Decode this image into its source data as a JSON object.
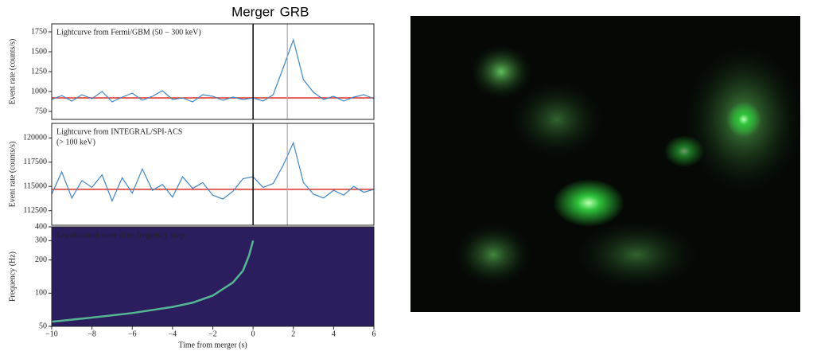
{
  "chart_data": [
    {
      "type": "line",
      "title": "Lightcurve from Fermi/GBM (50 − 300 keV)",
      "ylabel": "Event rate (counts/s)",
      "x": [
        -10,
        -9.5,
        -9,
        -8.5,
        -8,
        -7.5,
        -7,
        -6.5,
        -6,
        -5.5,
        -5,
        -4.5,
        -4,
        -3.5,
        -3,
        -2.5,
        -2,
        -1.5,
        -1,
        -0.5,
        0,
        0.5,
        1,
        1.5,
        2,
        2.5,
        3,
        3.5,
        4,
        4.5,
        5,
        5.5,
        6
      ],
      "series": [
        {
          "color": "#3f86c4",
          "values": [
            900,
            950,
            880,
            960,
            910,
            1000,
            870,
            930,
            980,
            890,
            940,
            1010,
            900,
            920,
            870,
            960,
            940,
            890,
            930,
            900,
            920,
            880,
            960,
            1300,
            1650,
            1150,
            990,
            900,
            940,
            880,
            930,
            960,
            910
          ]
        }
      ],
      "baseline": 920,
      "baseline_color": "#e0302a",
      "markers": [
        {
          "label": "Merger",
          "x": 0,
          "color": "#000000"
        },
        {
          "label": "GRB",
          "x": 1.7,
          "color": "#aaaaaa"
        }
      ],
      "xlim": [
        -10,
        6
      ],
      "ylim": [
        650,
        1850
      ],
      "yticks": [
        750,
        1000,
        1250,
        1500,
        1750
      ]
    },
    {
      "type": "line",
      "title": "Lightcurve from INTEGRAL/SPI-ACS",
      "subtitle": "(> 100 keV)",
      "ylabel": "Event rate (counts/s)",
      "x": [
        -10,
        -9.5,
        -9,
        -8.5,
        -8,
        -7.5,
        -7,
        -6.5,
        -6,
        -5.5,
        -5,
        -4.5,
        -4,
        -3.5,
        -3,
        -2.5,
        -2,
        -1.5,
        -1,
        -0.5,
        0,
        0.5,
        1,
        1.5,
        2,
        2.5,
        3,
        3.5,
        4,
        4.5,
        5,
        5.5,
        6
      ],
      "series": [
        {
          "color": "#3f86c4",
          "values": [
            114200,
            116500,
            113800,
            115600,
            114900,
            116200,
            113500,
            115900,
            114300,
            116800,
            114600,
            115200,
            113900,
            116000,
            114800,
            115400,
            114100,
            113700,
            114500,
            115800,
            116000,
            114900,
            115300,
            117200,
            119500,
            115400,
            114200,
            113800,
            114600,
            114100,
            115000,
            114400,
            114700
          ]
        }
      ],
      "baseline": 114700,
      "baseline_color": "#e0302a",
      "xlim": [
        -10,
        6
      ],
      "ylim": [
        111000,
        121500
      ],
      "yticks": [
        112500,
        115000,
        117500,
        120000
      ]
    },
    {
      "type": "line",
      "title": "Gravitational-wave time-frequency map",
      "ylabel": "Frequency (Hz)",
      "xlabel": "Time from merger (s)",
      "background": "#2b1d5e",
      "ylog": true,
      "x": [
        -10,
        -8,
        -6,
        -4,
        -3,
        -2,
        -1,
        -0.5,
        -0.2,
        0
      ],
      "series": [
        {
          "color": "#5fe0a0",
          "values": [
            55,
            60,
            66,
            75,
            82,
            95,
            125,
            160,
            220,
            300
          ]
        }
      ],
      "xlim": [
        -10,
        6
      ],
      "ylim": [
        50,
        400
      ],
      "xticks": [
        {
          "value": -10,
          "label": "−10"
        },
        {
          "value": -8,
          "label": "−8"
        },
        {
          "value": -6,
          "label": "−6"
        },
        {
          "value": -4,
          "label": "−4"
        },
        {
          "value": -2,
          "label": "−2"
        },
        0,
        2,
        4,
        6
      ],
      "yticks": [
        50,
        100,
        200,
        300,
        400
      ]
    }
  ]
}
